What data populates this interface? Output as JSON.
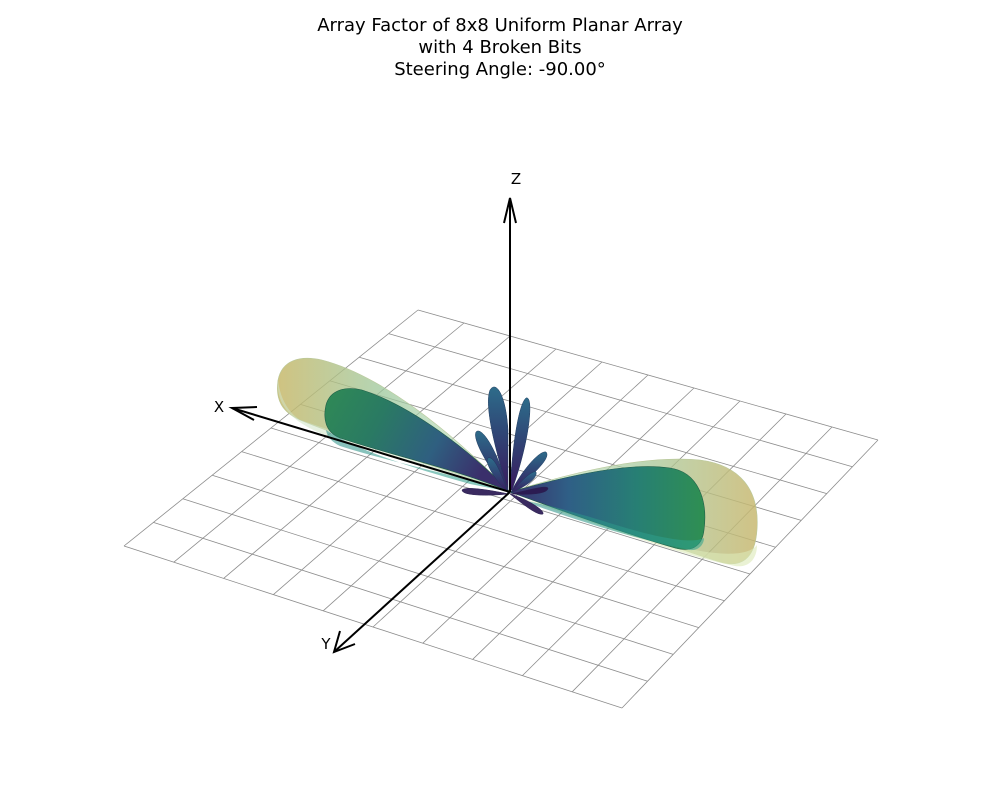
{
  "chart_data": {
    "type": "surface",
    "title_lines": [
      "Array Factor of 8x8 Uniform Planar Array",
      "with 4 Broken Bits",
      "Steering Angle: -90.00°"
    ],
    "axes": {
      "x_label": "X",
      "y_label": "Y",
      "z_label": "Z"
    },
    "grid": true,
    "ground_grid_divisions": 10,
    "lobes": [
      {
        "name": "outer-shell",
        "description_color": "#c9c27a"
      },
      {
        "name": "main-lobe",
        "description_color": "#2e8a5c"
      },
      {
        "name": "side-lobes",
        "description_color": "#3b2f6b"
      }
    ],
    "colormap": [
      "#440154",
      "#3b528b",
      "#21918c",
      "#5ec962",
      "#fde725"
    ]
  }
}
